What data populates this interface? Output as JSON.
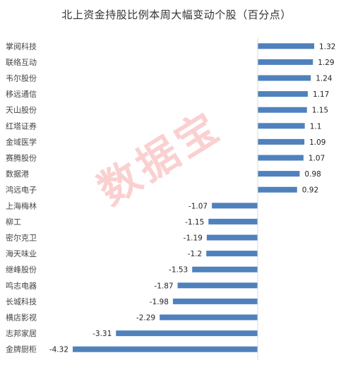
{
  "chart_data": {
    "type": "bar",
    "orientation": "horizontal",
    "title": "北上资金持股比例本周大幅变动个股（百分点）",
    "categories": [
      "掌阅科技",
      "联络互动",
      "韦尔股份",
      "移远通信",
      "天山股份",
      "红塔证券",
      "金域医学",
      "赛腾股份",
      "数据港",
      "鸿远电子",
      "上海梅林",
      "柳工",
      "密尔克卫",
      "海天味业",
      "继峰股份",
      "鸣志电器",
      "长城科技",
      "横店影视",
      "志邦家居",
      "金牌厨柜"
    ],
    "values": [
      1.32,
      1.29,
      1.24,
      1.17,
      1.15,
      1.1,
      1.09,
      1.07,
      0.98,
      0.92,
      -1.07,
      -1.15,
      -1.19,
      -1.2,
      -1.53,
      -1.87,
      -1.98,
      -2.29,
      -3.31,
      -4.32
    ],
    "value_labels": [
      "1.32",
      "1.29",
      "1.24",
      "1.17",
      "1.15",
      "1.1",
      "1.09",
      "1.07",
      "0.98",
      "0.92",
      "-1.07",
      "-1.15",
      "-1.19",
      "-1.2",
      "-1.53",
      "-1.87",
      "-1.98",
      "-2.29",
      "-3.31",
      "-4.32"
    ],
    "xlim": [
      -4.32,
      1.32
    ],
    "grid": false,
    "bar_color": "#4f81bd",
    "axis_color": "#d9d9d9"
  },
  "watermark": "数据宝"
}
